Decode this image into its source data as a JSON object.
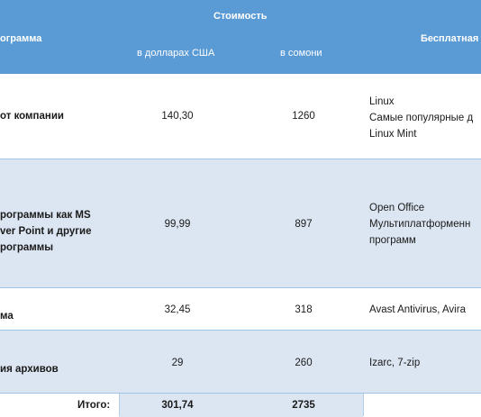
{
  "header": {
    "cost": "Стоимость",
    "program": "ограмма",
    "usd": "в долларах США",
    "somoni": "в сомони",
    "free": "Бесплатная"
  },
  "rows": [
    {
      "name": [
        "от компании"
      ],
      "usd": "140,30",
      "somoni": "1260",
      "free": [
        "Linux",
        "Самые популярные д",
        "Linux Mint"
      ]
    },
    {
      "name": [
        "рограммы как MS",
        "ver Point и другие",
        "рограммы"
      ],
      "usd": "99,99",
      "somoni": "897",
      "free": [
        "Open Office",
        "Мультиплатформенн",
        "программ"
      ]
    },
    {
      "name": [
        "ма"
      ],
      "usd": "32,45",
      "somoni": "318",
      "free": [
        "Avast Antivirus, Avira"
      ]
    },
    {
      "name": [
        "ия архивов"
      ],
      "usd": "29",
      "somoni": "260",
      "free": [
        "Izarc, 7-zip"
      ]
    }
  ],
  "total": {
    "label": "Итого:",
    "usd": "301,74",
    "somoni": "2735"
  }
}
